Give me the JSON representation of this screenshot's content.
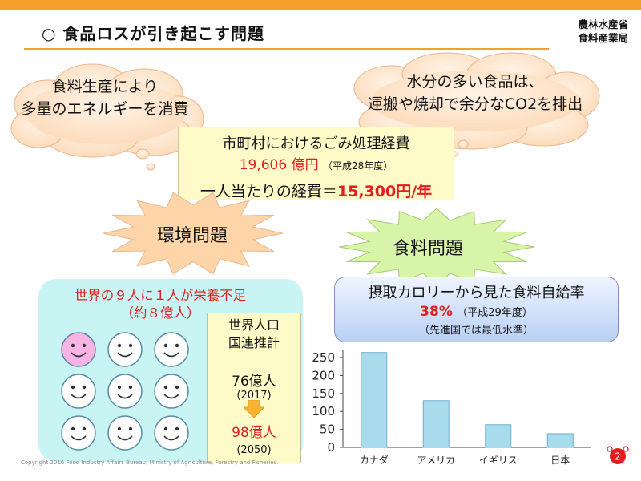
{
  "header": {
    "title": "○ 食品ロスが引き起こす問題",
    "org_line1": "農林水産省",
    "org_line2": "食料産業局",
    "accent": "#f4a02a"
  },
  "clouds": {
    "left": {
      "line1": "食料生産により",
      "line2": "多量のエネルギーを消費"
    },
    "right": {
      "line1": "水分の多い食品は、",
      "line2": "運搬や焼却で余分なCO2を排出"
    }
  },
  "cost_box": {
    "line1": "市町村におけるごみ処理経費",
    "amount": "19,606 億円",
    "amount_note": "（平成28年度）",
    "per_person_label": "一人当たりの経費＝",
    "per_person_value": "15,300円/年"
  },
  "bursts": {
    "environment": {
      "label": "環境問題",
      "color": "#fdd5a8"
    },
    "food": {
      "label": "食料問題",
      "color": "#d8f4a8"
    }
  },
  "nutrition": {
    "line1": "世界の９人に１人が栄養不足",
    "line2": "（約８億人）",
    "faces": [
      {
        "color": "#f8b4e4"
      },
      {
        "color": "#ffffff"
      },
      {
        "color": "#ffffff"
      },
      {
        "color": "#ffffff"
      },
      {
        "color": "#ffffff"
      },
      {
        "color": "#ffffff"
      },
      {
        "color": "#ffffff"
      },
      {
        "color": "#ffffff"
      },
      {
        "color": "#ffffff"
      }
    ]
  },
  "population": {
    "title_line1": "世界人口",
    "title_line2": "国連推計",
    "value_2017": "76億人",
    "year_2017": "(2017)",
    "value_2050": "98億人",
    "year_2050": "(2050)"
  },
  "food_self_sufficiency": {
    "title": "摂取カロリーから見た食料自給率",
    "value": "38%",
    "value_note": "（平成29年度）",
    "note": "（先進国では最低水準）"
  },
  "chart_data": {
    "type": "bar",
    "categories": [
      "カナダ",
      "アメリカ",
      "イギリス",
      "日本"
    ],
    "values": [
      264,
      130,
      63,
      38
    ],
    "ylim": [
      0,
      250
    ],
    "yticks": [
      0,
      50,
      100,
      150,
      200,
      250
    ],
    "bar_color": "#a8dcec",
    "bar_edge": "#6aaed0",
    "grid": false
  },
  "footer": {
    "copyright": "Copyright 2016 Food Industry Affairs Bureau,   Ministry of Agriculture, Forestry and Fisheries.",
    "page": "2"
  }
}
